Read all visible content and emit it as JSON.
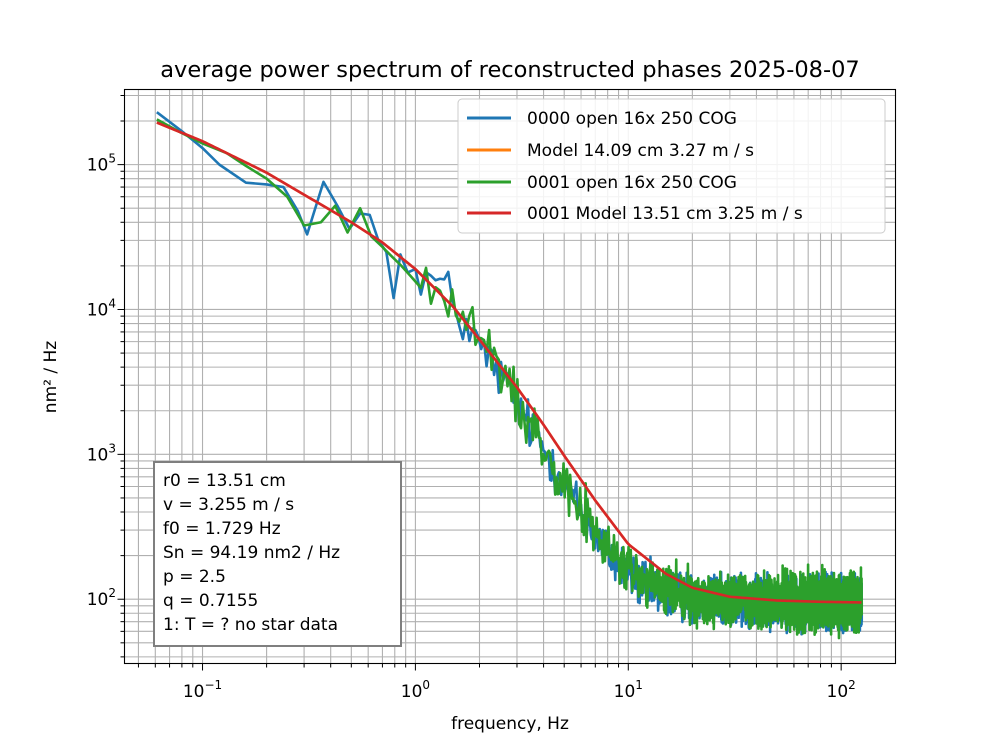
{
  "chart_data": {
    "type": "line",
    "title": "average power spectrum of reconstructed phases 2025-08-07",
    "xlabel": "frequency, Hz",
    "ylabel": "nm² / Hz",
    "xscale": "log",
    "yscale": "log",
    "xlim": [
      0.043,
      180
    ],
    "ylim": [
      36,
      330000
    ],
    "grid": "major and minor",
    "xticks": [
      {
        "value": 0.1,
        "base": "10",
        "exp": "−1"
      },
      {
        "value": 1,
        "base": "10",
        "exp": "0"
      },
      {
        "value": 10,
        "base": "10",
        "exp": "1"
      },
      {
        "value": 100,
        "base": "10",
        "exp": "2"
      }
    ],
    "yticks": [
      {
        "value": 100,
        "base": "10",
        "exp": "2"
      },
      {
        "value": 1000,
        "base": "10",
        "exp": "3"
      },
      {
        "value": 10000,
        "base": "10",
        "exp": "4"
      },
      {
        "value": 100000,
        "base": "10",
        "exp": "5"
      }
    ],
    "legend_position": "top-right",
    "series": [
      {
        "name": "0000 open 16x 250 COG",
        "color": "#1f77b4",
        "kind": "measured",
        "x": [
          0.061,
          0.08,
          0.1,
          0.12,
          0.16,
          0.2,
          0.24,
          0.28,
          0.31,
          0.37,
          0.43,
          0.49,
          0.55,
          0.61,
          0.67,
          0.73,
          0.79,
          0.85,
          0.92,
          1.0,
          1.2,
          1.4,
          1.6,
          1.8,
          2.0,
          2.5,
          3.0,
          3.5,
          4.0,
          5.0,
          6.0,
          7.0,
          8.0,
          10.0,
          12.0,
          15.0,
          20.0,
          30.0,
          50.0,
          80.0,
          125.0
        ],
        "y": [
          230000,
          170000,
          130000,
          100000,
          75000,
          73000,
          70000,
          48000,
          33000,
          76000,
          52000,
          36000,
          46000,
          45000,
          30000,
          25000,
          12000,
          24000,
          18000,
          19000,
          16000,
          14000,
          9000,
          7000,
          5500,
          3500,
          2200,
          1500,
          1100,
          650,
          400,
          280,
          210,
          150,
          125,
          110,
          102,
          98,
          96,
          95,
          95
        ],
        "noise": 0.55
      },
      {
        "name": "Model 14.09 cm 3.27 m / s",
        "color": "#ff7f0e",
        "kind": "model",
        "r0": 14.09,
        "v": 3.27,
        "Sn": 94.19
      },
      {
        "name": "0001 open 16x 250 COG",
        "color": "#2ca02c",
        "kind": "measured",
        "x": [
          0.061,
          0.08,
          0.1,
          0.13,
          0.16,
          0.2,
          0.25,
          0.3,
          0.36,
          0.42,
          0.48,
          0.55,
          0.62,
          0.7,
          0.78,
          0.86,
          0.95,
          1.05,
          1.2,
          1.4,
          1.6,
          1.8,
          2.0,
          2.5,
          3.0,
          3.5,
          4.0,
          5.0,
          6.0,
          7.0,
          8.0,
          10.0,
          12.0,
          15.0,
          20.0,
          30.0,
          50.0,
          80.0,
          125.0
        ],
        "y": [
          205000,
          165000,
          140000,
          120000,
          98000,
          80000,
          60000,
          38000,
          40000,
          52000,
          34000,
          50000,
          32000,
          27000,
          23000,
          20000,
          17000,
          15000,
          14000,
          12000,
          9500,
          8000,
          6000,
          3800,
          2400,
          1600,
          1150,
          680,
          420,
          290,
          220,
          160,
          130,
          115,
          105,
          99,
          97,
          95,
          95
        ],
        "noise": 0.6
      },
      {
        "name": "0001 Model 13.51 cm 3.25 m / s",
        "color": "#d62728",
        "kind": "model",
        "r0": 13.51,
        "v": 3.25,
        "Sn": 94.19
      }
    ],
    "model_curve": {
      "x": [
        0.061,
        0.1,
        0.2,
        0.3,
        0.5,
        0.7,
        1.0,
        1.5,
        2.0,
        3.0,
        4.0,
        5.0,
        7.0,
        10.0,
        15.0,
        20.0,
        30.0,
        50.0,
        80.0,
        125.0
      ],
      "y": [
        195000,
        145000,
        88000,
        62000,
        40000,
        29000,
        19000,
        10500,
        6200,
        2900,
        1600,
        980,
        480,
        240,
        150,
        120,
        104,
        98,
        96,
        95
      ]
    },
    "info_box": {
      "position": "bottom-left",
      "lines": [
        "r0 = 13.51 cm",
        "v = 3.255 m / s",
        "f0 = 1.729 Hz",
        "Sn = 94.19 nm2 / Hz",
        "p = 2.5",
        "q = 0.7155",
        "1: T = ?  no star data"
      ]
    }
  }
}
